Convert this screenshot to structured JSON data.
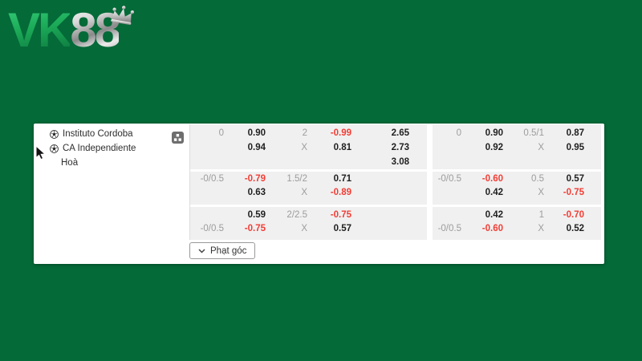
{
  "colors": {
    "page_background": "#046a38",
    "panel_background": "#ffffff",
    "block_background": "#f0f0f0",
    "odds_text": "#1f1f1f",
    "negative_odds_text": "#f23d35",
    "label_text": "#9c9c9c",
    "logo_green": "#1cab58",
    "logo_silver": "#c0c0c0"
  },
  "logo": {
    "part_green": "VK",
    "part_silver": "88",
    "crown": "crown-icon"
  },
  "panel": {
    "teams": [
      {
        "name": "Instituto Cordoba",
        "icon": "soccer-ball-icon"
      },
      {
        "name": "CA Independiente",
        "icon": "soccer-ball-icon"
      },
      {
        "name": "Hoà"
      }
    ],
    "stats_icon": "team-stats-icon",
    "corner_button": {
      "label": "Phạt góc",
      "icon": "chevron-down-icon"
    },
    "odds": {
      "left": {
        "blocks": [
          {
            "lines": [
              [
                {
                  "t": "0",
                  "s": "label"
                },
                {
                  "t": "0.90",
                  "s": "odds"
                },
                {
                  "t": "2",
                  "s": "label"
                },
                {
                  "t": "-0.99",
                  "s": "neg"
                },
                {
                  "t": "2.65",
                  "s": "odds"
                }
              ],
              [
                {
                  "t": "",
                  "s": ""
                },
                {
                  "t": "0.94",
                  "s": "odds"
                },
                {
                  "t": "X",
                  "s": "label"
                },
                {
                  "t": "0.81",
                  "s": "odds"
                },
                {
                  "t": "2.73",
                  "s": "odds"
                }
              ],
              [
                {
                  "t": "",
                  "s": ""
                },
                {
                  "t": "",
                  "s": ""
                },
                {
                  "t": "",
                  "s": ""
                },
                {
                  "t": "",
                  "s": ""
                },
                {
                  "t": "3.08",
                  "s": "odds"
                }
              ]
            ]
          },
          {
            "lines": [
              [
                {
                  "t": "-0/0.5",
                  "s": "label"
                },
                {
                  "t": "-0.79",
                  "s": "neg"
                },
                {
                  "t": "1.5/2",
                  "s": "label"
                },
                {
                  "t": "0.71",
                  "s": "odds"
                },
                {
                  "t": "",
                  "s": ""
                }
              ],
              [
                {
                  "t": "",
                  "s": ""
                },
                {
                  "t": "0.63",
                  "s": "odds"
                },
                {
                  "t": "X",
                  "s": "label"
                },
                {
                  "t": "-0.89",
                  "s": "neg"
                },
                {
                  "t": "",
                  "s": ""
                }
              ]
            ]
          },
          {
            "lines": [
              [
                {
                  "t": "",
                  "s": ""
                },
                {
                  "t": "0.59",
                  "s": "odds"
                },
                {
                  "t": "2/2.5",
                  "s": "label"
                },
                {
                  "t": "-0.75",
                  "s": "neg"
                },
                {
                  "t": "",
                  "s": ""
                }
              ],
              [
                {
                  "t": "-0/0.5",
                  "s": "label"
                },
                {
                  "t": "-0.75",
                  "s": "neg"
                },
                {
                  "t": "X",
                  "s": "label"
                },
                {
                  "t": "0.57",
                  "s": "odds"
                },
                {
                  "t": "",
                  "s": ""
                }
              ]
            ]
          }
        ]
      },
      "right": {
        "blocks": [
          {
            "lines": [
              [
                {
                  "t": "0",
                  "s": "label"
                },
                {
                  "t": "0.90",
                  "s": "odds"
                },
                {
                  "t": "0.5/1",
                  "s": "label"
                },
                {
                  "t": "0.87",
                  "s": "odds"
                }
              ],
              [
                {
                  "t": "",
                  "s": ""
                },
                {
                  "t": "0.92",
                  "s": "odds"
                },
                {
                  "t": "X",
                  "s": "label"
                },
                {
                  "t": "0.95",
                  "s": "odds"
                }
              ]
            ]
          },
          {
            "lines": [
              [
                {
                  "t": "-0/0.5",
                  "s": "label"
                },
                {
                  "t": "-0.60",
                  "s": "neg"
                },
                {
                  "t": "0.5",
                  "s": "label"
                },
                {
                  "t": "0.57",
                  "s": "odds"
                }
              ],
              [
                {
                  "t": "",
                  "s": ""
                },
                {
                  "t": "0.42",
                  "s": "odds"
                },
                {
                  "t": "X",
                  "s": "label"
                },
                {
                  "t": "-0.75",
                  "s": "neg"
                }
              ]
            ]
          },
          {
            "lines": [
              [
                {
                  "t": "",
                  "s": ""
                },
                {
                  "t": "0.42",
                  "s": "odds"
                },
                {
                  "t": "1",
                  "s": "label"
                },
                {
                  "t": "-0.70",
                  "s": "neg"
                }
              ],
              [
                {
                  "t": "-0/0.5",
                  "s": "label"
                },
                {
                  "t": "-0.60",
                  "s": "neg"
                },
                {
                  "t": "X",
                  "s": "label"
                },
                {
                  "t": "0.52",
                  "s": "odds"
                }
              ]
            ]
          }
        ]
      }
    }
  }
}
